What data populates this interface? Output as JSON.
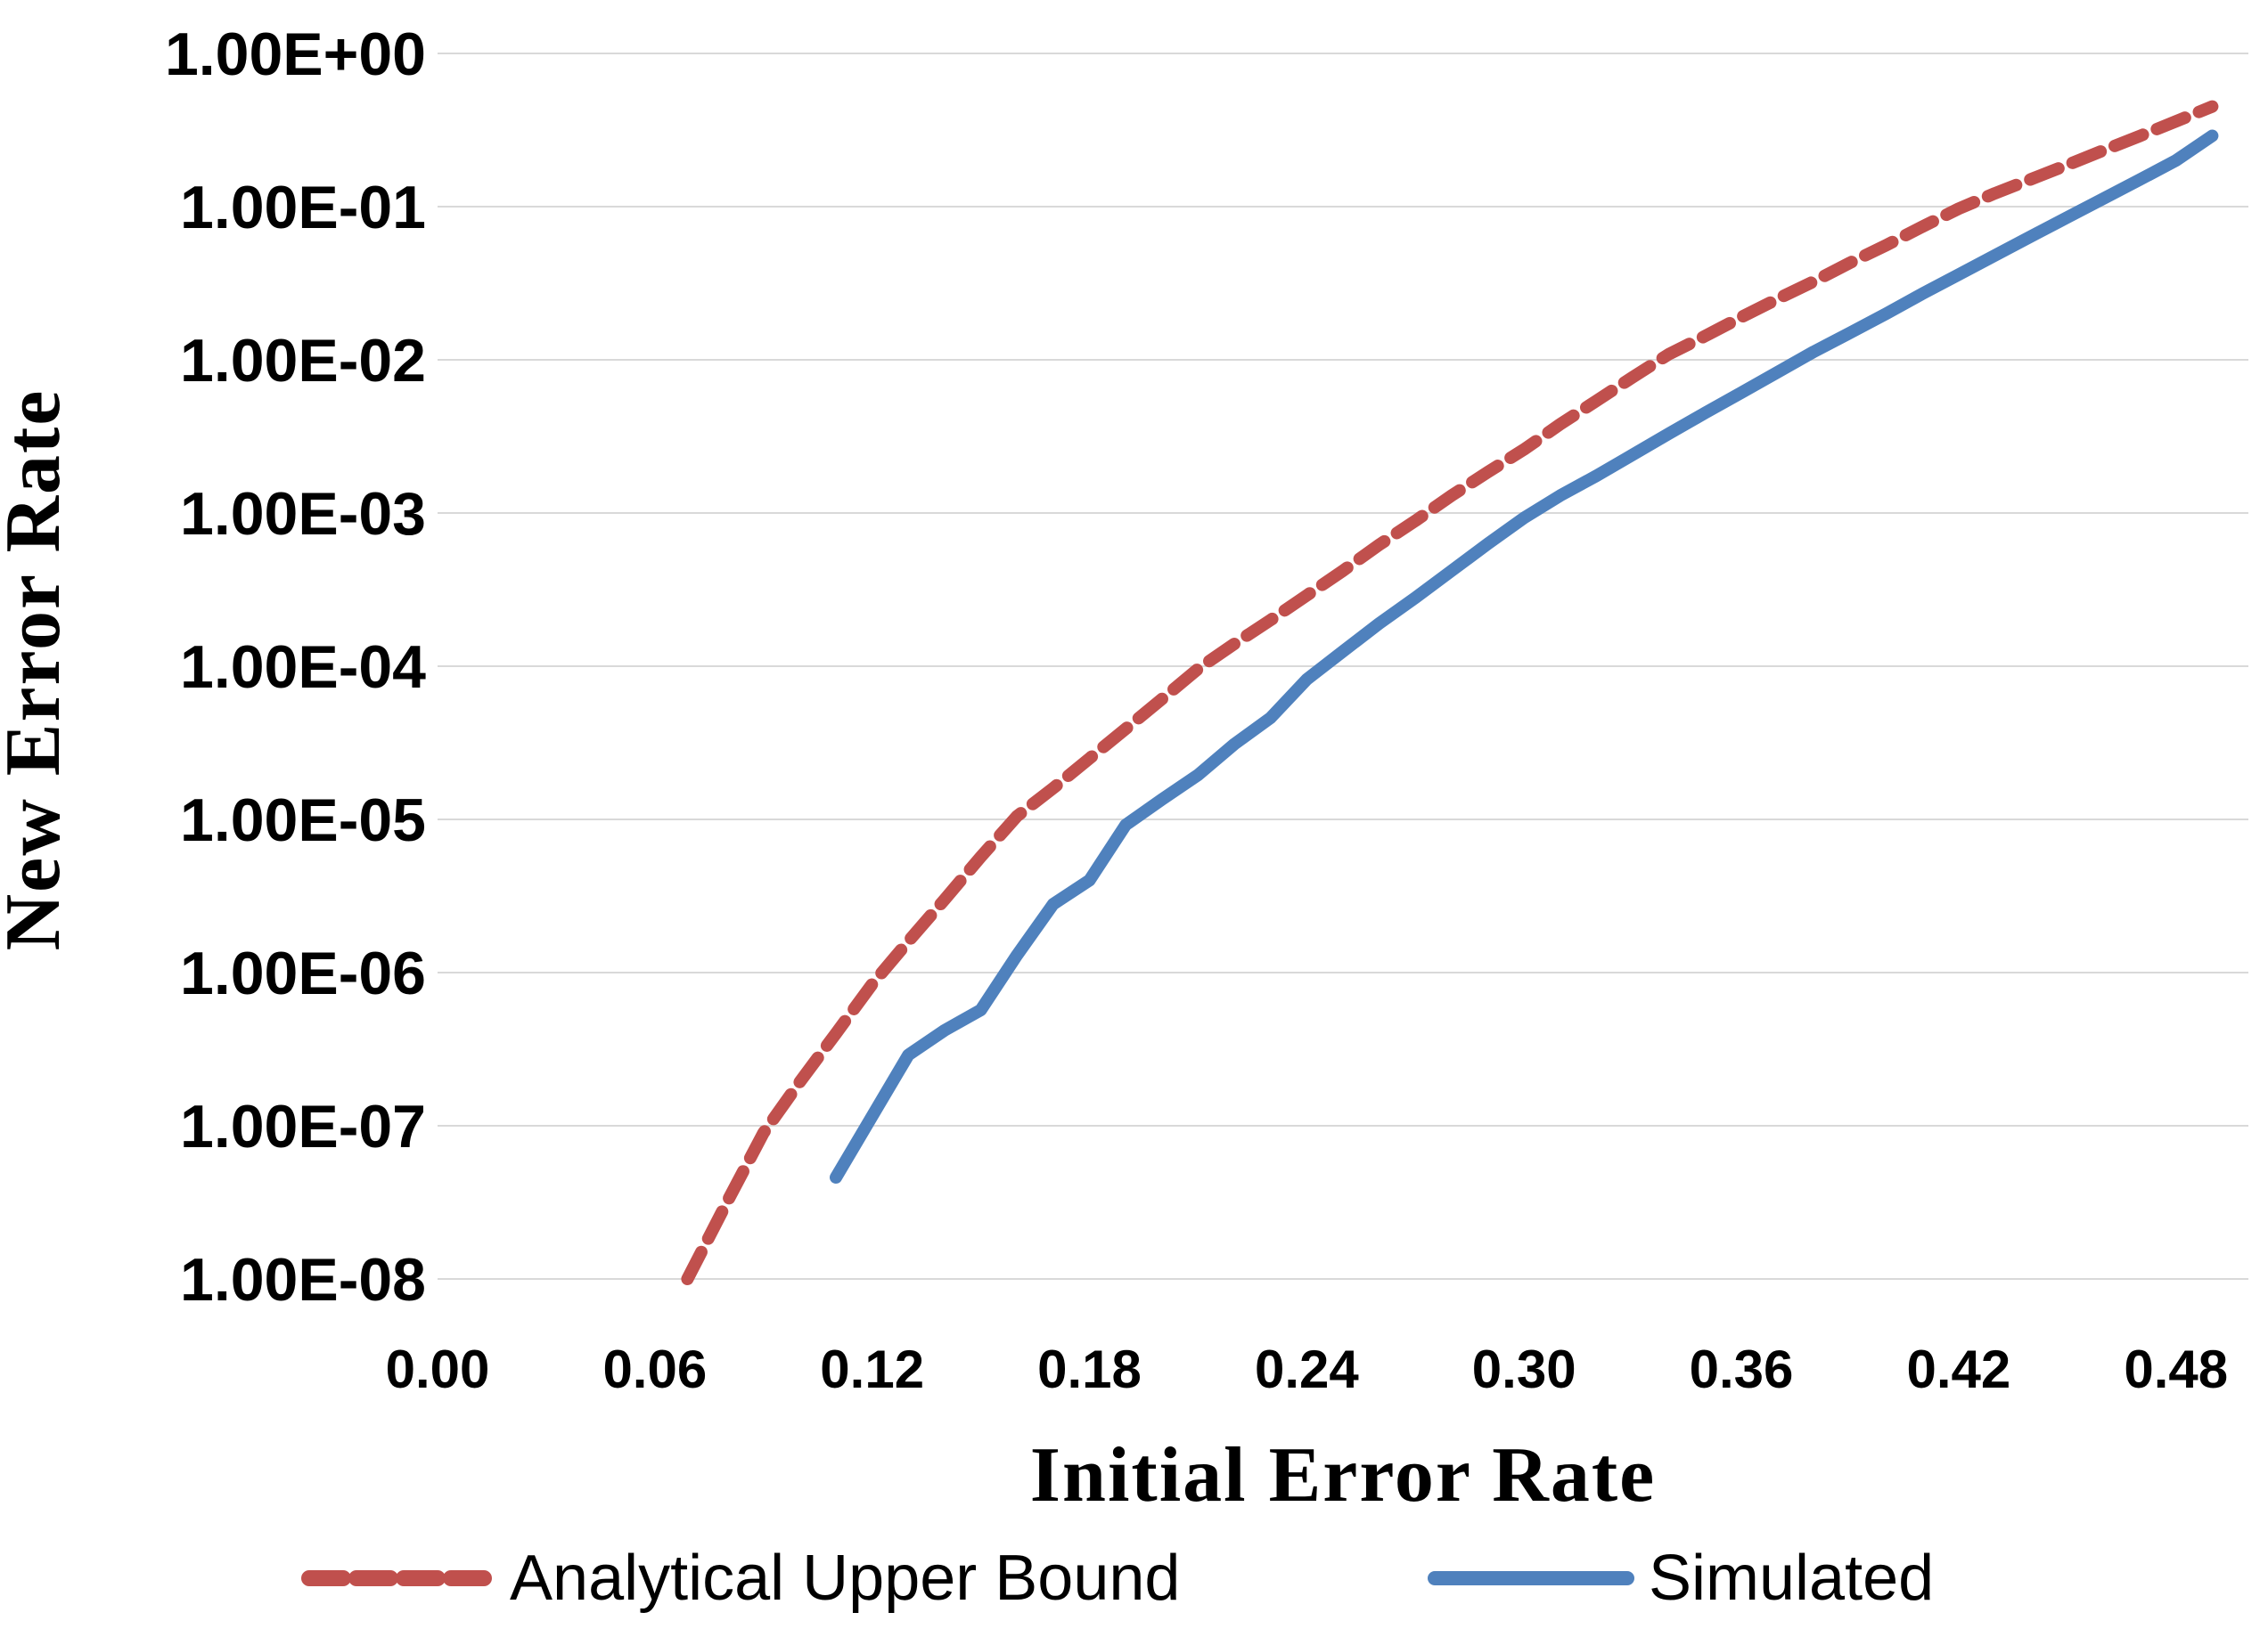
{
  "chart": {
    "y_axis": {
      "title": "New Error Rate",
      "scale": "log",
      "tick_labels": [
        "1.00E+00",
        "1.00E-01",
        "1.00E-02",
        "1.00E-03",
        "1.00E-04",
        "1.00E-05",
        "1.00E-06",
        "1.00E-07",
        "1.00E-08"
      ],
      "max_exponent": 0,
      "min_exponent": -8
    },
    "x_axis": {
      "title": "Initial Error Rate",
      "scale": "linear",
      "tick_labels": [
        "0.00",
        "0.06",
        "0.12",
        "0.18",
        "0.24",
        "0.30",
        "0.36",
        "0.42",
        "0.48"
      ],
      "min": 0,
      "max": 0.5,
      "tick_step": 0.06
    },
    "legend": {
      "items": [
        {
          "label": "Analytical Upper Bound",
          "color": "#C0504D",
          "style": "dashed"
        },
        {
          "label": "Simulated",
          "color": "#4F81BD",
          "style": "solid"
        }
      ]
    },
    "colors": {
      "analytical": "#C0504D",
      "simulated": "#4F81BD",
      "gridline": "#D9D9D9",
      "text": "#000000",
      "background": "#FFFFFF"
    }
  },
  "chart_data": {
    "type": "line",
    "title": "",
    "xlabel": "Initial Error Rate",
    "ylabel": "New Error Rate",
    "xlim": [
      0,
      0.5
    ],
    "ylim_log": [
      1e-08,
      1.0
    ],
    "grid": "horizontal",
    "legend_position": "bottom",
    "series": [
      {
        "name": "Analytical Upper Bound",
        "color": "#C0504D",
        "dashed": true,
        "points": [
          [
            0.069,
            1e-08
          ],
          [
            0.08,
            3.2e-08
          ],
          [
            0.09,
            9e-08
          ],
          [
            0.1,
            1.93e-07
          ],
          [
            0.11,
            4e-07
          ],
          [
            0.12,
            8.4e-07
          ],
          [
            0.13,
            1.6e-06
          ],
          [
            0.14,
            3e-06
          ],
          [
            0.15,
            5.7e-06
          ],
          [
            0.16,
            1.05e-05
          ],
          [
            0.17,
            1.6e-05
          ],
          [
            0.18,
            2.5e-05
          ],
          [
            0.19,
            3.9e-05
          ],
          [
            0.2,
            6.1e-05
          ],
          [
            0.21,
            9.6e-05
          ],
          [
            0.22,
            0.00014
          ],
          [
            0.23,
            0.0002
          ],
          [
            0.24,
            0.00029
          ],
          [
            0.25,
            0.00042
          ],
          [
            0.26,
            0.00062
          ],
          [
            0.27,
            0.00089
          ],
          [
            0.28,
            0.0013
          ],
          [
            0.29,
            0.00185
          ],
          [
            0.3,
            0.0026
          ],
          [
            0.31,
            0.0038
          ],
          [
            0.32,
            0.0054
          ],
          [
            0.33,
            0.0077
          ],
          [
            0.34,
            0.0109
          ],
          [
            0.35,
            0.0143
          ],
          [
            0.36,
            0.019
          ],
          [
            0.37,
            0.025
          ],
          [
            0.38,
            0.0325
          ],
          [
            0.39,
            0.043
          ],
          [
            0.4,
            0.056
          ],
          [
            0.41,
            0.074
          ],
          [
            0.42,
            0.097
          ],
          [
            0.43,
            0.122
          ],
          [
            0.44,
            0.151
          ],
          [
            0.45,
            0.187
          ],
          [
            0.46,
            0.233
          ],
          [
            0.47,
            0.289
          ],
          [
            0.48,
            0.36
          ],
          [
            0.49,
            0.45
          ]
        ]
      },
      {
        "name": "Simulated",
        "color": "#4F81BD",
        "dashed": false,
        "points": [
          [
            0.11,
            4.6e-08
          ],
          [
            0.13,
            2.9e-07
          ],
          [
            0.14,
            4.2e-07
          ],
          [
            0.15,
            5.7e-07
          ],
          [
            0.16,
            1.3e-06
          ],
          [
            0.17,
            2.8e-06
          ],
          [
            0.18,
            4e-06
          ],
          [
            0.19,
            9.2e-06
          ],
          [
            0.2,
            1.35e-05
          ],
          [
            0.21,
            1.95e-05
          ],
          [
            0.22,
            3.1e-05
          ],
          [
            0.23,
            4.6e-05
          ],
          [
            0.24,
            8.2e-05
          ],
          [
            0.25,
            0.000125
          ],
          [
            0.26,
            0.00019
          ],
          [
            0.27,
            0.00028
          ],
          [
            0.28,
            0.00042
          ],
          [
            0.29,
            0.00063
          ],
          [
            0.3,
            0.00093
          ],
          [
            0.31,
            0.0013
          ],
          [
            0.32,
            0.00175
          ],
          [
            0.33,
            0.0024
          ],
          [
            0.34,
            0.0033
          ],
          [
            0.35,
            0.0045
          ],
          [
            0.36,
            0.0061
          ],
          [
            0.37,
            0.0083
          ],
          [
            0.38,
            0.0113
          ],
          [
            0.39,
            0.015
          ],
          [
            0.4,
            0.02
          ],
          [
            0.41,
            0.027
          ],
          [
            0.42,
            0.036
          ],
          [
            0.43,
            0.048
          ],
          [
            0.44,
            0.064
          ],
          [
            0.45,
            0.085
          ],
          [
            0.46,
            0.113
          ],
          [
            0.47,
            0.15
          ],
          [
            0.48,
            0.2
          ],
          [
            0.49,
            0.29
          ]
        ]
      }
    ]
  }
}
